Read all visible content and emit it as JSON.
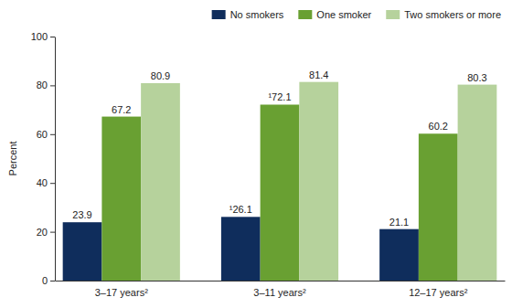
{
  "chart_data": {
    "type": "bar",
    "y_label": "Percent",
    "categories": [
      "3–17 years²",
      "3–11 years²",
      "12–17 years²"
    ],
    "series": [
      {
        "name": "No smokers",
        "color": "#0f2d5c",
        "values": [
          23.9,
          26.1,
          21.1
        ],
        "value_labels": [
          "23.9",
          "¹26.1",
          "21.1"
        ]
      },
      {
        "name": "One smoker",
        "color": "#69a032",
        "values": [
          67.2,
          72.1,
          60.2
        ],
        "value_labels": [
          "67.2",
          "¹72.1",
          "60.2"
        ]
      },
      {
        "name": "Two smokers or more",
        "color": "#b6d29c",
        "values": [
          80.9,
          81.4,
          80.3
        ]
      }
    ],
    "ylim": [
      0,
      100
    ],
    "yticks": [
      0,
      20,
      40,
      60,
      80,
      100
    ],
    "grid": false,
    "legend": "top-right",
    "data_labels": true
  }
}
